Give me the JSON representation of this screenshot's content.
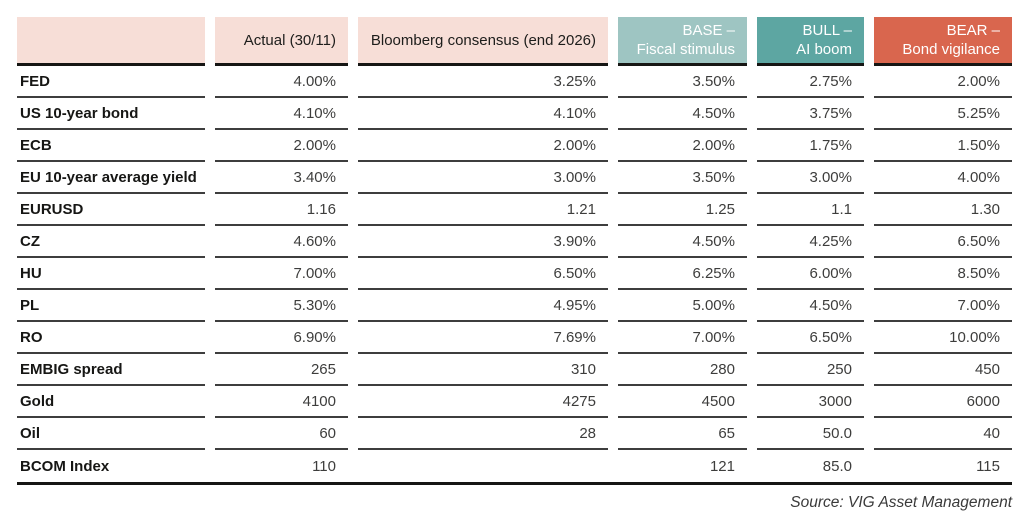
{
  "header": {
    "actual": "Actual (30/11)",
    "bloomberg": "Bloomberg consensus (end 2026)",
    "scenarios": [
      {
        "line1": "BASE –",
        "line2": "Fiscal stimulus"
      },
      {
        "line1": "BULL –",
        "line2": "AI boom"
      },
      {
        "line1": "BEAR –",
        "line2": "Bond vigilance"
      }
    ]
  },
  "rows": [
    {
      "label": "FED",
      "values": [
        "4.00%",
        "3.25%",
        "3.50%",
        "2.75%",
        "2.00%"
      ]
    },
    {
      "label": "US 10-year bond",
      "values": [
        "4.10%",
        "4.10%",
        "4.50%",
        "3.75%",
        "5.25%"
      ]
    },
    {
      "label": "ECB",
      "values": [
        "2.00%",
        "2.00%",
        "2.00%",
        "1.75%",
        "1.50%"
      ]
    },
    {
      "label": "EU 10-year average yield",
      "values": [
        "3.40%",
        "3.00%",
        "3.50%",
        "3.00%",
        "4.00%"
      ]
    },
    {
      "label": "EURUSD",
      "values": [
        "1.16",
        "1.21",
        "1.25",
        "1.1",
        "1.30"
      ]
    },
    {
      "label": "CZ",
      "values": [
        "4.60%",
        "3.90%",
        "4.50%",
        "4.25%",
        "6.50%"
      ]
    },
    {
      "label": "HU",
      "values": [
        "7.00%",
        "6.50%",
        "6.25%",
        "6.00%",
        "8.50%"
      ]
    },
    {
      "label": "PL",
      "values": [
        "5.30%",
        "4.95%",
        "5.00%",
        "4.50%",
        "7.00%"
      ]
    },
    {
      "label": "RO",
      "values": [
        "6.90%",
        "7.69%",
        "7.00%",
        "6.50%",
        "10.00%"
      ]
    },
    {
      "label": "EMBIG spread",
      "values": [
        "265",
        "310",
        "280",
        "250",
        "450"
      ]
    },
    {
      "label": "Gold",
      "values": [
        "4100",
        "4275",
        "4500",
        "3000",
        "6000"
      ]
    },
    {
      "label": "Oil",
      "values": [
        "60",
        "28",
        "65",
        "50.0",
        "40"
      ]
    },
    {
      "label": "BCOM Index",
      "values": [
        "110",
        "",
        "121",
        "85.0",
        "115"
      ]
    }
  ],
  "footer": {
    "source": "Source: VIG Asset Management"
  },
  "colors": {
    "header_pink": "#f7ded7",
    "base_teal": "#9ec5c2",
    "bull_teal": "#5da6a2",
    "bear_red": "#d9664e",
    "rule_black": "#161614",
    "row_line": "#3e3e3e",
    "value_text": "#3d3d3c"
  },
  "chart_data": {
    "type": "table",
    "columns": [
      "",
      "Actual (30/11)",
      "Bloomberg consensus (end 2026)",
      "BASE – Fiscal stimulus",
      "BULL – AI boom",
      "BEAR – Bond vigilance"
    ],
    "rows": [
      [
        "FED",
        "4.00%",
        "3.25%",
        "3.50%",
        "2.75%",
        "2.00%"
      ],
      [
        "US 10-year bond",
        "4.10%",
        "4.10%",
        "4.50%",
        "3.75%",
        "5.25%"
      ],
      [
        "ECB",
        "2.00%",
        "2.00%",
        "2.00%",
        "1.75%",
        "1.50%"
      ],
      [
        "EU 10-year average yield",
        "3.40%",
        "3.00%",
        "3.50%",
        "3.00%",
        "4.00%"
      ],
      [
        "EURUSD",
        "1.16",
        "1.21",
        "1.25",
        "1.1",
        "1.30"
      ],
      [
        "CZ",
        "4.60%",
        "3.90%",
        "4.50%",
        "4.25%",
        "6.50%"
      ],
      [
        "HU",
        "7.00%",
        "6.50%",
        "6.25%",
        "6.00%",
        "8.50%"
      ],
      [
        "PL",
        "5.30%",
        "4.95%",
        "5.00%",
        "4.50%",
        "7.00%"
      ],
      [
        "RO",
        "6.90%",
        "7.69%",
        "7.00%",
        "6.50%",
        "10.00%"
      ],
      [
        "EMBIG spread",
        "265",
        "310",
        "280",
        "250",
        "450"
      ],
      [
        "Gold",
        "4100",
        "4275",
        "4500",
        "3000",
        "6000"
      ],
      [
        "Oil",
        "60",
        "28",
        "65",
        "50.0",
        "40"
      ],
      [
        "BCOM Index",
        "110",
        "",
        "121",
        "85.0",
        "115"
      ]
    ],
    "source": "Source: VIG Asset Management"
  }
}
